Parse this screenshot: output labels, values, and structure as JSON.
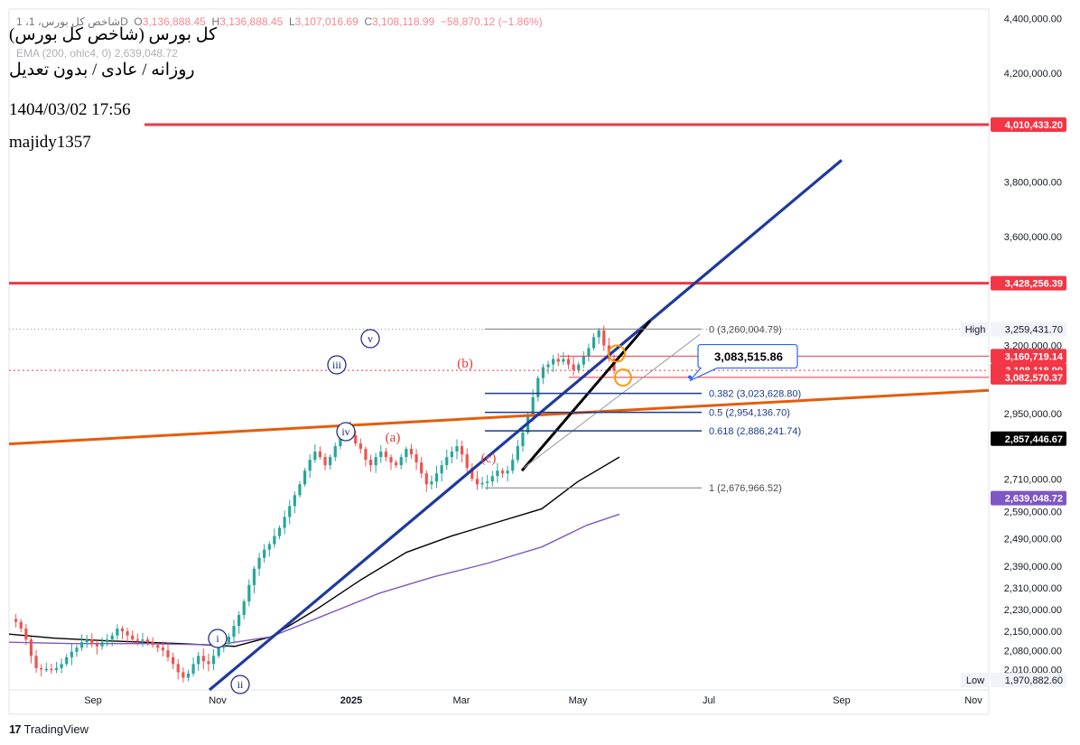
{
  "header": {
    "ohlc": {
      "symbol": "1 ،شاخص کل بورس، 1D",
      "open_label": "O",
      "open": "3,136,888.45",
      "high_label": "H",
      "high": "3,136,888.45",
      "low_label": "L",
      "low": "3,107,016.69",
      "close_label": "C",
      "close": "3,108,118.99",
      "change": "−58,870.12 (−1.86%)"
    },
    "ema": "EMA (200, ohlc4, 0)  2,639,048.72"
  },
  "overlay": {
    "title": "کل بورس (شاخص کل بورس)",
    "subtitle": "روزانه / عادی / بدون تعدیل",
    "datetime": "1404/03/02 17:56",
    "author": "majidy1357"
  },
  "branding": {
    "logo_text": "TradingView",
    "logo_icon": "tradingview-logo-icon"
  },
  "colors": {
    "up": "#26a69a",
    "down": "#ef5350",
    "red_level": "#f23645",
    "blue_trend": "#1e3a9c",
    "orange_trend": "#e65c0a",
    "black_line": "#000000",
    "purple_ema": "#7e57c2",
    "fib_blue": "#1e3a8a",
    "wave_blue": "#1a237e",
    "wave_red": "#e53935",
    "callout": "#2962ff"
  },
  "chart_data": {
    "type": "candlestick",
    "y_range": [
      1935000,
      4435000
    ],
    "x_months": [
      {
        "label": "Sep",
        "bold": false
      },
      {
        "label": "Nov",
        "bold": false
      },
      {
        "label": "2025",
        "bold": true
      },
      {
        "label": "Mar",
        "bold": false
      },
      {
        "label": "May",
        "bold": false
      },
      {
        "label": "Jul",
        "bold": false
      },
      {
        "label": "Sep",
        "bold": false
      },
      {
        "label": "Nov",
        "bold": false
      }
    ],
    "y_ticks": [
      {
        "v": 4400000,
        "t": "4,400,000.00"
      },
      {
        "v": 4200000,
        "t": "4,200,000.00"
      },
      {
        "v": 3800000,
        "t": "3,800,000.00"
      },
      {
        "v": 3600000,
        "t": "3,600,000.00"
      },
      {
        "v": 3200000,
        "t": "3,200,000.00"
      },
      {
        "v": 2950000,
        "t": "2,950,000.00"
      },
      {
        "v": 2710000,
        "t": "2,710,000.00"
      },
      {
        "v": 2590000,
        "t": "2,590,000.00"
      },
      {
        "v": 2490000,
        "t": "2,490,000.00"
      },
      {
        "v": 2390000,
        "t": "2,390,000.00"
      },
      {
        "v": 2310000,
        "t": "2,310,000.00"
      },
      {
        "v": 2230000,
        "t": "2,230,000.00"
      },
      {
        "v": 2150000,
        "t": "2,150,000.00"
      },
      {
        "v": 2080000,
        "t": "2,080,000.00"
      },
      {
        "v": 2010000,
        "t": "2,010,000.00"
      }
    ],
    "price_labels": [
      {
        "v": 4010433.2,
        "t": "4,010,433.20",
        "color": "#f23645"
      },
      {
        "v": 3428256.39,
        "t": "3,428,256.39",
        "color": "#f23645"
      },
      {
        "v": 3160719.14,
        "t": "3,160,719.14",
        "color": "#f23645"
      },
      {
        "v": 3108118.99,
        "t": "3,108,118.99",
        "color": "#f23645"
      },
      {
        "v": 3082570.37,
        "t": "3,082,570.37",
        "color": "#f23645"
      },
      {
        "v": 2857446.67,
        "t": "2,857,446.67",
        "color": "#000000"
      },
      {
        "v": 2639048.72,
        "t": "2,639,048.72",
        "color": "#7e57c2"
      }
    ],
    "high_label": {
      "label": "High",
      "v": 3259431.7,
      "t": "3,259,431.70"
    },
    "low_label": {
      "label": "Low",
      "v": 1970882.6,
      "t": "1,970,882.60"
    },
    "horizontal_levels": [
      4010433.2,
      3428256.39
    ],
    "fib_levels": [
      {
        "ratio": "0",
        "v": 3260004.79,
        "t": "0 (3,260,004.79)"
      },
      {
        "ratio": "0.382",
        "v": 3023628.8,
        "t": "0.382 (3,023,628.80)"
      },
      {
        "ratio": "0.5",
        "v": 2954136.7,
        "t": "0.5 (2,954,136.70)"
      },
      {
        "ratio": "0.618",
        "v": 2886241.74,
        "t": "0.618 (2,886,241.74)"
      },
      {
        "ratio": "1",
        "v": 2676966.52,
        "t": "1 (2,676,966.52)"
      }
    ],
    "callout": {
      "t": "3,083,515.86",
      "v": 3083515.86
    },
    "wave_labels": [
      {
        "t": "i",
        "style": "blue-circle"
      },
      {
        "t": "ii",
        "style": "blue-circle"
      },
      {
        "t": "iii",
        "style": "blue-circle"
      },
      {
        "t": "iv",
        "style": "blue-circle"
      },
      {
        "t": "v",
        "style": "blue-circle"
      },
      {
        "t": "(a)",
        "style": "red"
      },
      {
        "t": "(b)",
        "style": "red"
      },
      {
        "t": "(c)",
        "style": "red"
      }
    ],
    "price_path": [
      2195000,
      2185000,
      2160000,
      2120000,
      2060000,
      2015000,
      2010000,
      2012000,
      2008000,
      2015000,
      2030000,
      2055000,
      2075000,
      2090000,
      2110000,
      2120000,
      2105000,
      2095000,
      2110000,
      2120000,
      2135000,
      2160000,
      2150000,
      2135000,
      2120000,
      2115000,
      2120000,
      2110000,
      2100000,
      2090000,
      2080000,
      2055000,
      2030000,
      2000000,
      1980000,
      1995000,
      2030000,
      2060000,
      2040000,
      2030000,
      2060000,
      2090000,
      2110000,
      2130000,
      2170000,
      2210000,
      2260000,
      2320000,
      2380000,
      2420000,
      2450000,
      2470000,
      2500000,
      2530000,
      2570000,
      2610000,
      2650000,
      2690000,
      2740000,
      2780000,
      2810000,
      2790000,
      2760000,
      2790000,
      2830000,
      2870000,
      2900000,
      2870000,
      2840000,
      2820000,
      2780000,
      2760000,
      2790000,
      2810000,
      2790000,
      2770000,
      2760000,
      2790000,
      2820000,
      2800000,
      2770000,
      2730000,
      2690000,
      2700000,
      2730000,
      2760000,
      2790000,
      2810000,
      2830000,
      2800000,
      2750000,
      2710000,
      2690000,
      2695000,
      2700000,
      2720000,
      2740000,
      2730000,
      2740000,
      2780000,
      2830000,
      2880000,
      2940000,
      3010000,
      3080000,
      3120000,
      3130000,
      3150000,
      3140000,
      3150000,
      3130000,
      3110000,
      3130000,
      3160000,
      3190000,
      3230000,
      3255000,
      3200000,
      3150000,
      3108000
    ]
  }
}
